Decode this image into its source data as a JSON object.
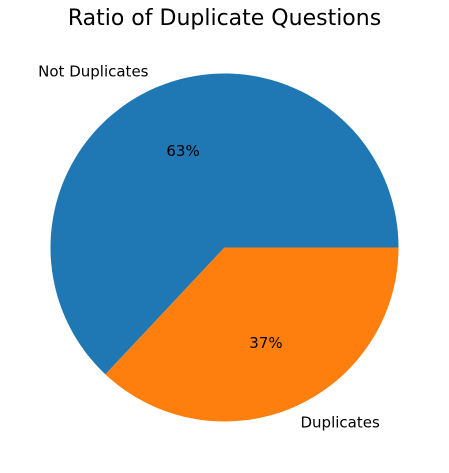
{
  "chart_data": {
    "type": "pie",
    "title": "Ratio of Duplicate Questions",
    "categories": [
      "Not Duplicates",
      "Duplicates"
    ],
    "values": [
      63,
      37
    ],
    "value_labels": [
      "63%",
      "37%"
    ],
    "colors": [
      "#1f77b4",
      "#ff7f0e"
    ],
    "start_angle_deg": 0,
    "direction": "counterclockwise",
    "legend": "none"
  }
}
